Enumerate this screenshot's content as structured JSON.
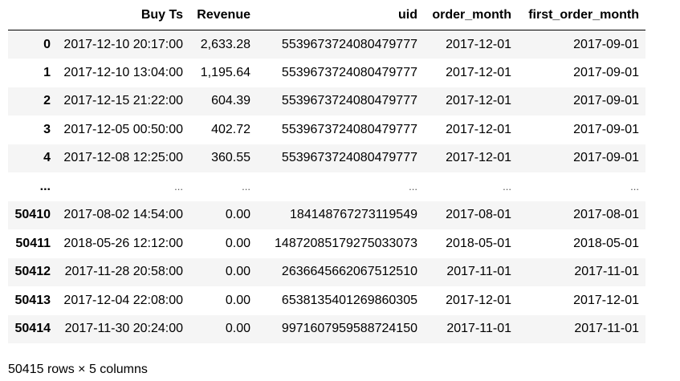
{
  "table": {
    "columns": [
      "Buy Ts",
      "Revenue",
      "uid",
      "order_month",
      "first_order_month"
    ],
    "rows": [
      {
        "index": "0",
        "cells": [
          "2017-12-10 20:17:00",
          "2,633.28",
          "5539673724080479777",
          "2017-12-01",
          "2017-09-01"
        ]
      },
      {
        "index": "1",
        "cells": [
          "2017-12-10 13:04:00",
          "1,195.64",
          "5539673724080479777",
          "2017-12-01",
          "2017-09-01"
        ]
      },
      {
        "index": "2",
        "cells": [
          "2017-12-15 21:22:00",
          "604.39",
          "5539673724080479777",
          "2017-12-01",
          "2017-09-01"
        ]
      },
      {
        "index": "3",
        "cells": [
          "2017-12-05 00:50:00",
          "402.72",
          "5539673724080479777",
          "2017-12-01",
          "2017-09-01"
        ]
      },
      {
        "index": "4",
        "cells": [
          "2017-12-08 12:25:00",
          "360.55",
          "5539673724080479777",
          "2017-12-01",
          "2017-09-01"
        ]
      },
      {
        "index": "...",
        "cells": [
          "...",
          "...",
          "...",
          "...",
          "..."
        ]
      },
      {
        "index": "50410",
        "cells": [
          "2017-08-02 14:54:00",
          "0.00",
          "184148767273119549",
          "2017-08-01",
          "2017-08-01"
        ]
      },
      {
        "index": "50411",
        "cells": [
          "2018-05-26 12:12:00",
          "0.00",
          "14872085179275033073",
          "2018-05-01",
          "2018-05-01"
        ]
      },
      {
        "index": "50412",
        "cells": [
          "2017-11-28 20:58:00",
          "0.00",
          "2636645662067512510",
          "2017-11-01",
          "2017-11-01"
        ]
      },
      {
        "index": "50413",
        "cells": [
          "2017-12-04 22:08:00",
          "0.00",
          "6538135401269860305",
          "2017-12-01",
          "2017-12-01"
        ]
      },
      {
        "index": "50414",
        "cells": [
          "2017-11-30 20:24:00",
          "0.00",
          "9971607959588724150",
          "2017-11-01",
          "2017-11-01"
        ]
      }
    ]
  },
  "footer": "50415 rows × 5 columns"
}
